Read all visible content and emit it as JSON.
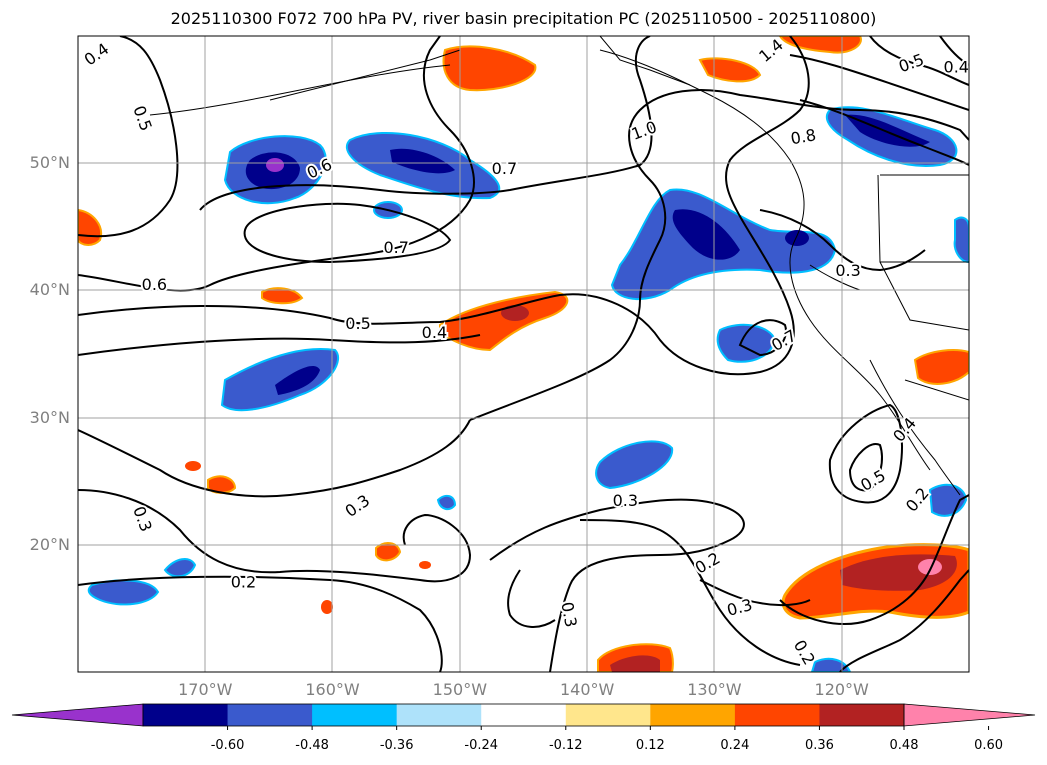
{
  "title": "2025110300 F072 700 hPa PV, river basin precipitation PC (2025110500 - 2025110800)",
  "lat_axis": {
    "labels": [
      {
        "text": "50°N",
        "lat": 50
      },
      {
        "text": "40°N",
        "lat": 40
      },
      {
        "text": "30°N",
        "lat": 30
      },
      {
        "text": "20°N",
        "lat": 20
      }
    ]
  },
  "lon_axis": {
    "labels": [
      {
        "text": "170°W",
        "lon": -170
      },
      {
        "text": "160°W",
        "lon": -160
      },
      {
        "text": "150°W",
        "lon": -150
      },
      {
        "text": "140°W",
        "lon": -140
      },
      {
        "text": "130°W",
        "lon": -130
      },
      {
        "text": "120°W",
        "lon": -120
      }
    ]
  },
  "colorbar": {
    "colors": [
      "#9932cc",
      "#00008b",
      "#3a5acd",
      "#00bfff",
      "#aee2fa",
      "#ffffff",
      "#ffe68c",
      "#ffa500",
      "#ff4500",
      "#b22222",
      "#ff82ab"
    ],
    "ticks": [
      "-0.60",
      "-0.48",
      "-0.36",
      "-0.24",
      "-0.12",
      "0.12",
      "0.24",
      "0.36",
      "0.48",
      "0.60"
    ]
  },
  "contour_labels": [
    {
      "text": "0.4",
      "lon": -178.5,
      "lat": 58.5,
      "rot": -35
    },
    {
      "text": "0.5",
      "lon": -175,
      "lat": 53.5,
      "rot": 70
    },
    {
      "text": "0.6",
      "lon": -161,
      "lat": 49.5,
      "rot": -25
    },
    {
      "text": "0.7",
      "lon": -146.5,
      "lat": 49.5,
      "rot": 0
    },
    {
      "text": "0.7",
      "lon": -155,
      "lat": 43.3,
      "rot": 0
    },
    {
      "text": "1.0",
      "lon": -135.5,
      "lat": 52.5,
      "rot": -20
    },
    {
      "text": "1.4",
      "lon": -125.5,
      "lat": 58.8,
      "rot": -40
    },
    {
      "text": "0.8",
      "lon": -123,
      "lat": 52,
      "rot": -10
    },
    {
      "text": "0.5",
      "lon": -114.5,
      "lat": 57.8,
      "rot": -20
    },
    {
      "text": "0.4",
      "lon": -111,
      "lat": 57.5,
      "rot": 0
    },
    {
      "text": "0.3",
      "lon": -119.5,
      "lat": 41.5,
      "rot": 0
    },
    {
      "text": "0.6",
      "lon": -174,
      "lat": 40.4,
      "rot": 0
    },
    {
      "text": "0.5",
      "lon": -158,
      "lat": 37.3,
      "rot": 0
    },
    {
      "text": "0.4",
      "lon": -152,
      "lat": 36.6,
      "rot": 0
    },
    {
      "text": "0.7",
      "lon": -124.5,
      "lat": 36,
      "rot": -30
    },
    {
      "text": "0.3",
      "lon": -158,
      "lat": 23,
      "rot": -35
    },
    {
      "text": "0.3",
      "lon": -175,
      "lat": 22,
      "rot": 70
    },
    {
      "text": "0.3",
      "lon": -137,
      "lat": 23.4,
      "rot": 0
    },
    {
      "text": "0.2",
      "lon": -167,
      "lat": 17,
      "rot": 0
    },
    {
      "text": "0.2",
      "lon": -130.5,
      "lat": 18.5,
      "rot": -30
    },
    {
      "text": "0.3",
      "lon": -141.5,
      "lat": 14.5,
      "rot": 80
    },
    {
      "text": "0.3",
      "lon": -128,
      "lat": 15,
      "rot": -15
    },
    {
      "text": "0.2",
      "lon": -123,
      "lat": 11.5,
      "rot": 60
    },
    {
      "text": "0.5",
      "lon": -117.5,
      "lat": 25,
      "rot": -30
    },
    {
      "text": "0.2",
      "lon": -114,
      "lat": 23.5,
      "rot": -50
    },
    {
      "text": "0.4",
      "lon": -115,
      "lat": 29,
      "rot": -50
    }
  ]
}
